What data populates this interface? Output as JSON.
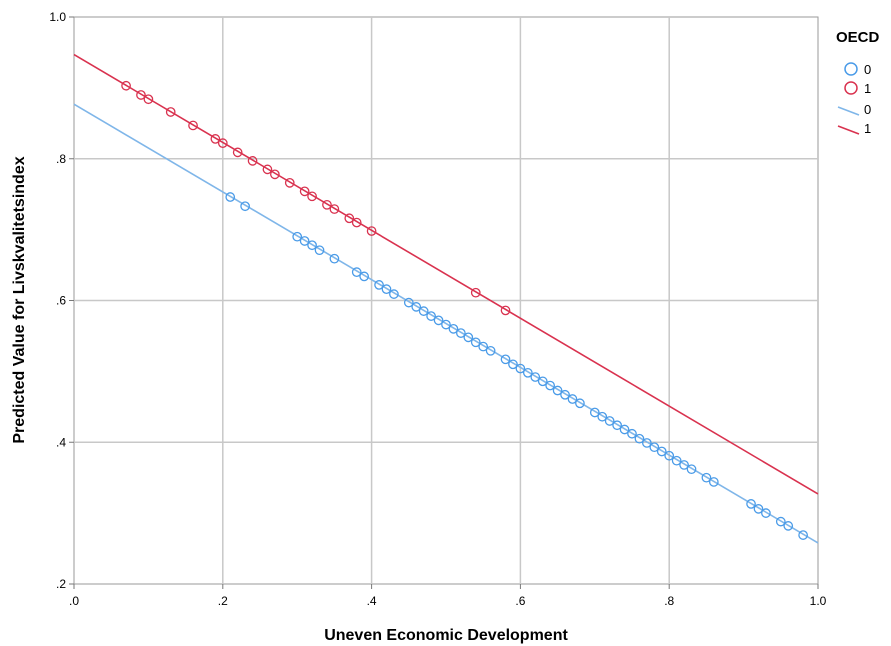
{
  "chart_data": {
    "type": "scatter",
    "xlabel": "Uneven Economic Development",
    "ylabel": "Predicted Value for Livskvalitetsindex",
    "xlim": [
      0,
      1
    ],
    "ylim": [
      0.2,
      1
    ],
    "x_ticks": [
      ".0",
      ".2",
      ".4",
      ".6",
      ".8",
      "1.0"
    ],
    "y_ticks": [
      ".2",
      ".4",
      ".6",
      ".8",
      "1.0"
    ],
    "grid": true,
    "legend_placement": "right",
    "legend_title": "OECD",
    "series": [
      {
        "name": "0",
        "color": "#4a9be8",
        "marker": "open-circle",
        "x": [
          0.21,
          0.23,
          0.3,
          0.31,
          0.32,
          0.33,
          0.35,
          0.38,
          0.39,
          0.41,
          0.42,
          0.43,
          0.45,
          0.46,
          0.47,
          0.48,
          0.49,
          0.5,
          0.51,
          0.52,
          0.53,
          0.54,
          0.55,
          0.56,
          0.58,
          0.59,
          0.6,
          0.61,
          0.62,
          0.63,
          0.64,
          0.65,
          0.66,
          0.67,
          0.68,
          0.7,
          0.71,
          0.72,
          0.73,
          0.74,
          0.75,
          0.76,
          0.77,
          0.78,
          0.79,
          0.8,
          0.81,
          0.82,
          0.83,
          0.85,
          0.86,
          0.91,
          0.92,
          0.93,
          0.95,
          0.96,
          0.98
        ],
        "y": [
          0.746,
          0.733,
          0.69,
          0.684,
          0.678,
          0.671,
          0.659,
          0.64,
          0.634,
          0.622,
          0.616,
          0.609,
          0.597,
          0.591,
          0.585,
          0.578,
          0.572,
          0.566,
          0.56,
          0.554,
          0.548,
          0.541,
          0.535,
          0.529,
          0.517,
          0.51,
          0.504,
          0.498,
          0.492,
          0.486,
          0.48,
          0.473,
          0.467,
          0.461,
          0.455,
          0.442,
          0.436,
          0.43,
          0.424,
          0.418,
          0.412,
          0.405,
          0.399,
          0.393,
          0.387,
          0.381,
          0.374,
          0.368,
          0.362,
          0.35,
          0.344,
          0.313,
          0.306,
          0.3,
          0.288,
          0.282,
          0.269
        ]
      },
      {
        "name": "1",
        "color": "#d9324f",
        "marker": "open-circle",
        "x": [
          0.07,
          0.09,
          0.1,
          0.13,
          0.16,
          0.19,
          0.2,
          0.22,
          0.24,
          0.26,
          0.27,
          0.29,
          0.31,
          0.32,
          0.34,
          0.35,
          0.37,
          0.38,
          0.4,
          0.54,
          0.58
        ],
        "y": [
          0.903,
          0.89,
          0.884,
          0.866,
          0.847,
          0.828,
          0.822,
          0.809,
          0.797,
          0.785,
          0.778,
          0.766,
          0.754,
          0.747,
          0.735,
          0.729,
          0.716,
          0.71,
          0.698,
          0.611,
          0.586
        ]
      }
    ],
    "fit_lines": [
      {
        "name": "0",
        "color": "#7fb6e9",
        "x": [
          0,
          1
        ],
        "y": [
          0.877,
          0.258
        ]
      },
      {
        "name": "1",
        "color": "#d9324f",
        "x": [
          0,
          1
        ],
        "y": [
          0.947,
          0.327
        ]
      }
    ]
  }
}
